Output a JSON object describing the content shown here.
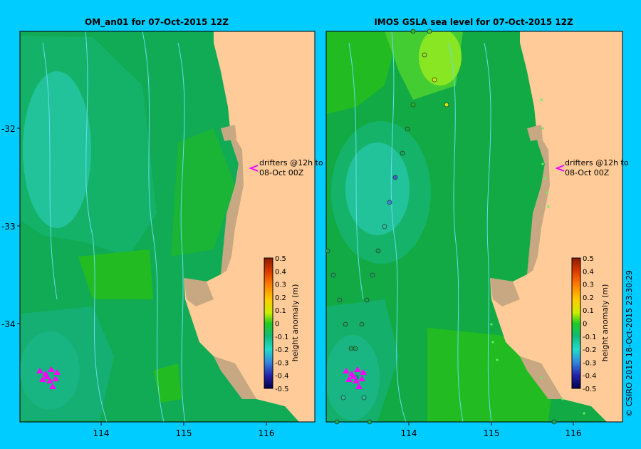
{
  "panels": [
    {
      "title": "OM_an01  for 07-Oct-2015 12Z",
      "drifters_label_line1": "drifters @12h to",
      "drifters_label_line2": "08-Oct 00Z",
      "colorbar_label": "height anomaly (m)"
    },
    {
      "title": "IMOS GSLA sea level  for 07-Oct-2015 12Z",
      "drifters_label_line1": "drifters @12h to",
      "drifters_label_line2": "08-Oct 00Z",
      "colorbar_label": "height anomaly (m)"
    }
  ],
  "axes": {
    "lat_ticks": [
      "-32",
      "-33",
      "-34"
    ],
    "lon_ticks": [
      "114",
      "115",
      "116"
    ]
  },
  "colorbar_ticks": [
    "0.5",
    "0.4",
    "0.3",
    "0.2",
    "0.1",
    "0",
    "-0.1",
    "-0.2",
    "-0.3",
    "-0.4",
    "-0.5"
  ],
  "colors": {
    "background": "#00ccff",
    "land": "#ffcc99",
    "coast_shelf": "#c8a882",
    "sea_base": "#11aa55",
    "drifter": "#ff00ff"
  },
  "credit": "© CSIRO 2015   18-Oct-2015 23:30:29"
}
